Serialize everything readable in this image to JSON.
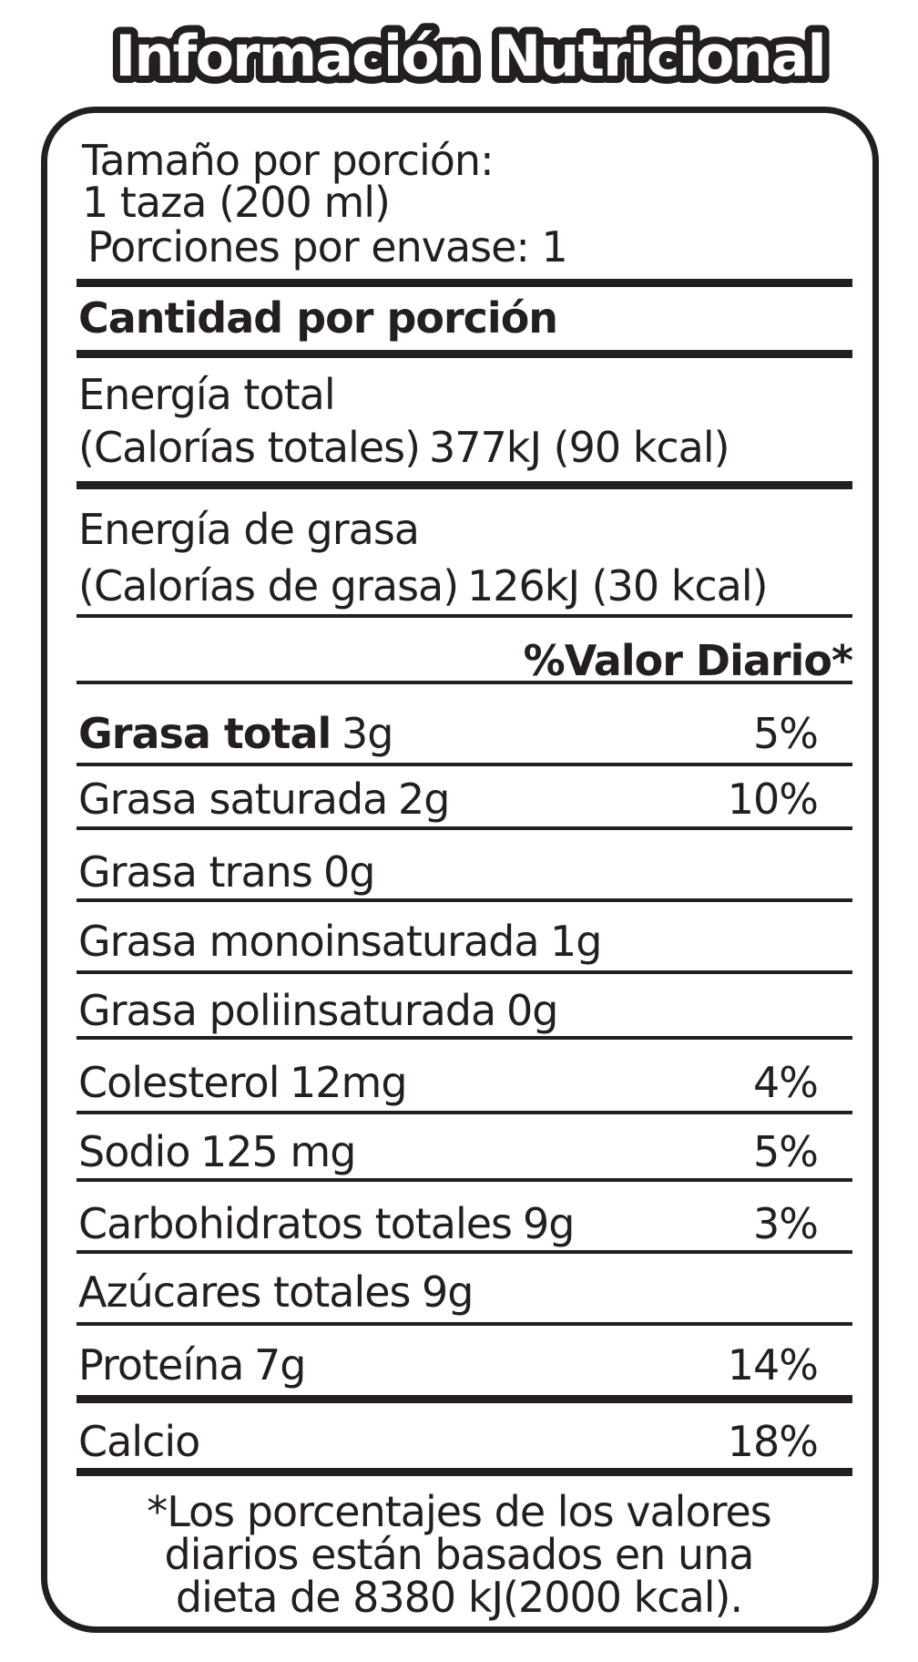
{
  "title": "Información Nutricional",
  "serving": {
    "size_label": "Tamaño por porción:",
    "size": "1 taza (200 ml)",
    "servings": "Porciones por envase: 1"
  },
  "amount_header": "Cantidad por porción",
  "energy": [
    {
      "label": "Energía total",
      "sub_label": "(Calorías totales)",
      "value": "377kJ (90 kcal)"
    },
    {
      "label": "Energía de grasa",
      "sub_label": "(Calorías de grasa)",
      "value": "126kJ (30 kcal)"
    }
  ],
  "daily_value_header": "%Valor Diario*",
  "nutrients": [
    {
      "name": "Grasa total",
      "amount": "3g",
      "dv": "5%"
    },
    {
      "name": "Grasa saturada",
      "amount": "2g",
      "dv": "10%"
    },
    {
      "name": "Grasa trans",
      "amount": "0g"
    },
    {
      "name": "Grasa monoinsaturada",
      "amount": "1g"
    },
    {
      "name": "Grasa poliinsaturada",
      "amount": "0g"
    },
    {
      "name": "Colesterol",
      "amount": "12mg",
      "dv": "4%"
    },
    {
      "name": "Sodio",
      "amount": "125 mg",
      "dv": "5%"
    },
    {
      "name": "Carbohidratos totales",
      "amount": "9g",
      "dv": "3%"
    },
    {
      "name": "Azúcares totales",
      "amount": "9g"
    },
    {
      "name": "Proteína",
      "amount": "7g",
      "dv": "14%"
    },
    {
      "name": "Calcio",
      "dv": "18%"
    }
  ],
  "footnote": [
    "*Los porcentajes de los valores",
    "diarios están basados en una",
    "dieta de 8380 kJ(2000 kcal)."
  ]
}
